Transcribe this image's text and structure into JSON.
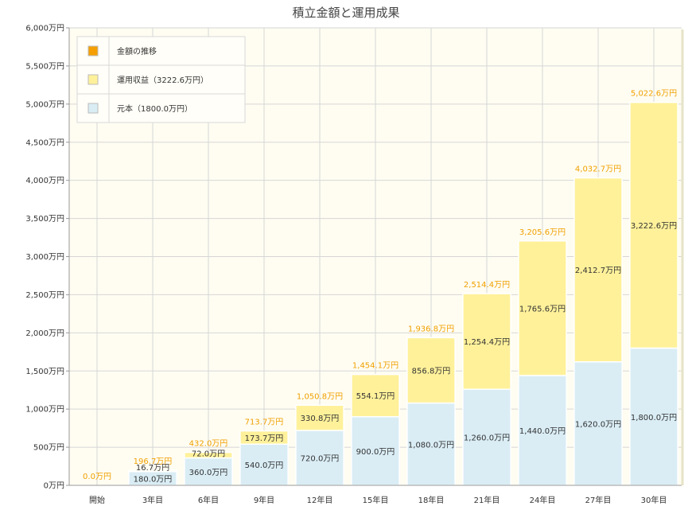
{
  "chart_data": {
    "type": "bar",
    "stacked": true,
    "title": "積立金額と運用成果",
    "categories": [
      "開始",
      "3年目",
      "6年目",
      "9年目",
      "12年目",
      "15年目",
      "18年目",
      "21年目",
      "24年目",
      "27年目",
      "30年目"
    ],
    "series": [
      {
        "name": "元本（1800.0万円）",
        "color": "#daedf5",
        "values": [
          0,
          180.0,
          360.0,
          540.0,
          720.0,
          900.0,
          1080.0,
          1260.0,
          1440.0,
          1620.0,
          1800.0
        ],
        "labels": [
          "",
          "180.0万円",
          "360.0万円",
          "540.0万円",
          "720.0万円",
          "900.0万円",
          "1,080.0万円",
          "1,260.0万円",
          "1,440.0万円",
          "1,620.0万円",
          "1,800.0万円"
        ]
      },
      {
        "name": "運用収益（3222.6万円）",
        "color": "#fff19a",
        "values": [
          0,
          16.7,
          72.0,
          173.7,
          330.8,
          554.1,
          856.8,
          1254.4,
          1765.6,
          2412.7,
          3222.6
        ],
        "labels": [
          "",
          "16.7万円",
          "72.0万円",
          "173.7万円",
          "330.8万円",
          "554.1万円",
          "856.8万円",
          "1,254.4万円",
          "1,765.6万円",
          "2,412.7万円",
          "3,222.6万円"
        ]
      }
    ],
    "totals": {
      "name": "金額の推移",
      "color": "#f5a000",
      "values": [
        0.0,
        196.7,
        432.0,
        713.7,
        1050.8,
        1454.1,
        1936.8,
        2514.4,
        3205.6,
        4032.7,
        5022.6
      ],
      "labels": [
        "0.0万円",
        "196.7万円",
        "432.0万円",
        "713.7万円",
        "1,050.8万円",
        "1,454.1万円",
        "1,936.8万円",
        "2,514.4万円",
        "3,205.6万円",
        "4,032.7万円",
        "5,022.6万円"
      ]
    },
    "ylim": [
      0,
      6000
    ],
    "yticks": [
      0,
      500,
      1000,
      1500,
      2000,
      2500,
      3000,
      3500,
      4000,
      4500,
      5000,
      5500,
      6000
    ],
    "ytick_labels": [
      "0万円",
      "500万円",
      "1,000万円",
      "1,500万円",
      "2,000万円",
      "2,500万円",
      "3,000万円",
      "3,500万円",
      "4,000万円",
      "4,500万円",
      "5,000万円",
      "5,500万円",
      "6,000万円"
    ],
    "legend": {
      "position": "top-left",
      "entries": [
        {
          "label": "金額の推移",
          "color": "#f5a000"
        },
        {
          "label": "運用収益（3222.6万円）",
          "color": "#fff19a"
        },
        {
          "label": "元本（1800.0万円）",
          "color": "#daedf5"
        }
      ]
    },
    "grid": true
  }
}
